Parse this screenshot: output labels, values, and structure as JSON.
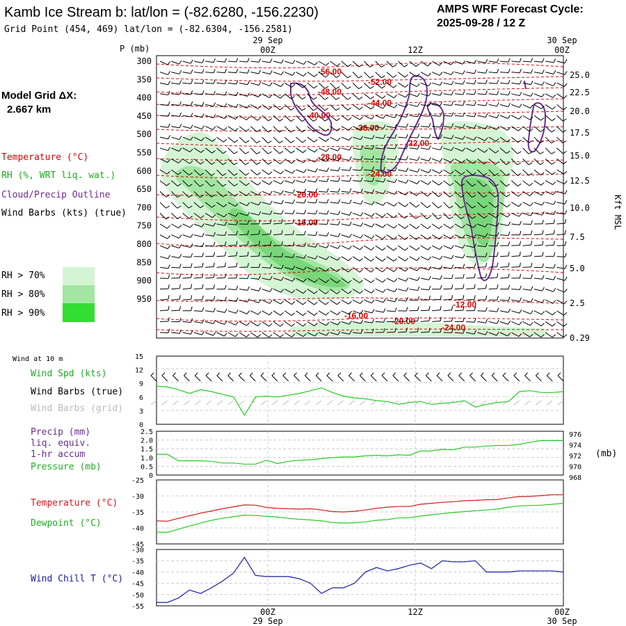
{
  "header": {
    "title": "Kamb Ice Stream b:  lat/lon = (-82.6280, -156.2230)",
    "subtitle": "Grid Point (454, 469) lat/lon = (-82.6304, -156.2581)",
    "cycle_line1": "AMPS WRF Forecast Cycle:",
    "cycle_line2": "2025-09-28 / 12  Z"
  },
  "model_grid": {
    "line1": "Model Grid ΔX:",
    "line2": "2.667 km"
  },
  "time_axis": {
    "top_date_left": "29 Sep",
    "top_date_right": "30 Sep",
    "labels": [
      "00Z",
      "12Z",
      "00Z"
    ],
    "bottom_date_left": "29 Sep",
    "bottom_date_right": "30 Sep"
  },
  "upper_panel": {
    "p_label": "P (mb)",
    "pressure_ticks": [
      "300",
      "350",
      "400",
      "450",
      "500",
      "550",
      "600",
      "650",
      "700",
      "750",
      "800",
      "850",
      "900",
      "950"
    ],
    "height_ticks": [
      "25.0",
      "22.5",
      "20.0",
      "17.5",
      "15.0",
      "12.5",
      "10.0",
      "7.5",
      "5.0",
      "2.5",
      "0.29"
    ],
    "height_label": "Kft MSL",
    "legend": {
      "temperature": "Temperature (°C)",
      "rh": "RH (%, WRT liq. wat.)",
      "cloud": "Cloud/Precip Outline",
      "wind": "Wind Barbs (kts) (true)"
    },
    "rh_legend": [
      "RH > 70%",
      "RH > 80%",
      "RH > 90%"
    ],
    "colors": {
      "temp": "#e00000",
      "rh70": "#d4f5d4",
      "rh80": "#a2e6a2",
      "rh90": "#33dd33",
      "cloud": "#6a2c91"
    }
  },
  "chart_data": [
    {
      "type": "contour",
      "title": "Temperature contours (°C)",
      "contour_labels": [
        "-56.00",
        "-52.00",
        "-48.00",
        "-44.00",
        "-40.00",
        "-36.00",
        "-32.00",
        "-28.00",
        "-24.00",
        "-20.00",
        "-16.00",
        "-12.00",
        "-16.00",
        "-20.00",
        "-24.00"
      ],
      "ylabel": "P (mb)",
      "ylim": [
        300,
        975
      ]
    },
    {
      "type": "line",
      "title": "Wind at 10 m",
      "series": [
        {
          "name": "Wind Spd (kts)",
          "color": "#22cc22",
          "values": [
            8.4,
            8.2,
            7.6,
            6.8,
            7.6,
            7.2,
            6.6,
            6.0,
            2.0,
            6.0,
            6.2,
            6.0,
            6.4,
            6.8,
            7.4,
            8.0,
            7.0,
            6.2,
            5.8,
            5.6,
            5.2,
            5.0,
            4.4,
            4.8,
            5.0,
            4.4,
            4.6,
            4.8,
            5.2,
            3.8,
            4.4,
            4.8,
            5.0,
            7.2,
            7.4,
            7.0,
            7.0,
            7.2
          ]
        }
      ],
      "ylim": [
        0,
        15
      ],
      "yticks": [
        "0",
        "3",
        "6",
        "9",
        "12",
        "15"
      ]
    },
    {
      "type": "line",
      "title": "Precip / Pressure",
      "series": [
        {
          "name": "Pressure (mb)",
          "color": "#22cc22",
          "values": [
            971.8,
            971.8,
            970.6,
            970.6,
            970.6,
            970.5,
            970.2,
            970.2,
            970.0,
            970.0,
            970.7,
            970.1,
            970.5,
            970.7,
            970.8,
            971.0,
            971.2,
            971.3,
            971.3,
            971.5,
            971.6,
            971.5,
            971.7,
            971.6,
            972.4,
            972.4,
            972.7,
            972.6,
            973.1,
            973.1,
            973.3,
            973.4,
            973.4,
            973.6,
            974.0,
            974.3,
            974.3,
            974.3
          ]
        }
      ],
      "ylim_left": [
        0,
        2.5
      ],
      "ylim_right": [
        968,
        976
      ],
      "yticks_left": [
        "0",
        "0.5",
        "1.0",
        "1.5",
        "2.0",
        "2.5"
      ],
      "yticks_right": [
        "968",
        "970",
        "972",
        "974",
        "976"
      ],
      "right_unit": "(mb)"
    },
    {
      "type": "line",
      "title": "Temperature / Dewpoint",
      "series": [
        {
          "name": "Temperature (°C)",
          "color": "#d81a1a",
          "values": [
            -37.8,
            -37.9,
            -37.0,
            -36.2,
            -35.4,
            -34.7,
            -34.0,
            -33.4,
            -32.8,
            -32.9,
            -33.6,
            -33.9,
            -34.0,
            -34.1,
            -34.0,
            -34.4,
            -34.9,
            -35.0,
            -34.8,
            -34.4,
            -33.9,
            -33.5,
            -33.3,
            -33.3,
            -32.6,
            -32.3,
            -32.0,
            -31.8,
            -31.5,
            -31.4,
            -31.2,
            -31.1,
            -30.6,
            -30.2,
            -30.1,
            -29.9,
            -29.6,
            -29.6
          ]
        },
        {
          "name": "Dewpoint (°C)",
          "color": "#22cc22",
          "values": [
            -41.3,
            -41.4,
            -40.4,
            -39.4,
            -38.5,
            -37.6,
            -37.0,
            -36.5,
            -36.0,
            -36.1,
            -36.4,
            -36.6,
            -37.0,
            -37.3,
            -37.5,
            -37.8,
            -38.3,
            -38.5,
            -38.4,
            -38.1,
            -37.6,
            -37.4,
            -36.9,
            -36.8,
            -36.3,
            -35.9,
            -35.5,
            -35.2,
            -34.9,
            -34.6,
            -34.4,
            -34.1,
            -33.5,
            -33.1,
            -33.0,
            -32.9,
            -32.6,
            -32.3
          ]
        }
      ],
      "ylim": [
        -45,
        -25
      ],
      "yticks": [
        "-25",
        "-30",
        "-35",
        "-40",
        "-45"
      ]
    },
    {
      "type": "line",
      "title": "Wind Chill",
      "series": [
        {
          "name": "Wind Chill T (°C)",
          "color": "#1a1aa8",
          "values": [
            -53.5,
            -53.5,
            -51.5,
            -48.0,
            -49.5,
            -47.0,
            -44.0,
            -40.5,
            -33.5,
            -41.5,
            -42.0,
            -42.0,
            -42.0,
            -43.0,
            -45.0,
            -49.5,
            -47.0,
            -47.0,
            -45.0,
            -40.0,
            -38.0,
            -39.5,
            -38.5,
            -37.0,
            -36.0,
            -38.5,
            -35.0,
            -35.5,
            -35.5,
            -35.0,
            -40.0,
            -40.0,
            -40.0,
            -39.5,
            -39.5,
            -39.5,
            -39.5,
            -40.0
          ]
        }
      ],
      "ylim": [
        -55,
        -30
      ],
      "yticks": [
        "-30",
        "-35",
        "-40",
        "-45",
        "-50",
        "-55"
      ]
    }
  ],
  "wind10m": {
    "header": "Wind at 10 m",
    "legend_speed": "Wind Spd (kts)",
    "legend_true": "Wind Barbs (true)",
    "legend_grid": "Wind Barbs (grid)"
  },
  "precip": {
    "legend1": "Precip (mm)",
    "legend2": "liq. equiv.",
    "legend3": "1-hr accum",
    "legend4": "Pressure (mb)"
  },
  "temp_panel": {
    "legend_temp": "Temperature (°C)",
    "legend_dew": "Dewpoint (°C)"
  },
  "chill_panel": {
    "legend": "Wind Chill T (°C)"
  }
}
